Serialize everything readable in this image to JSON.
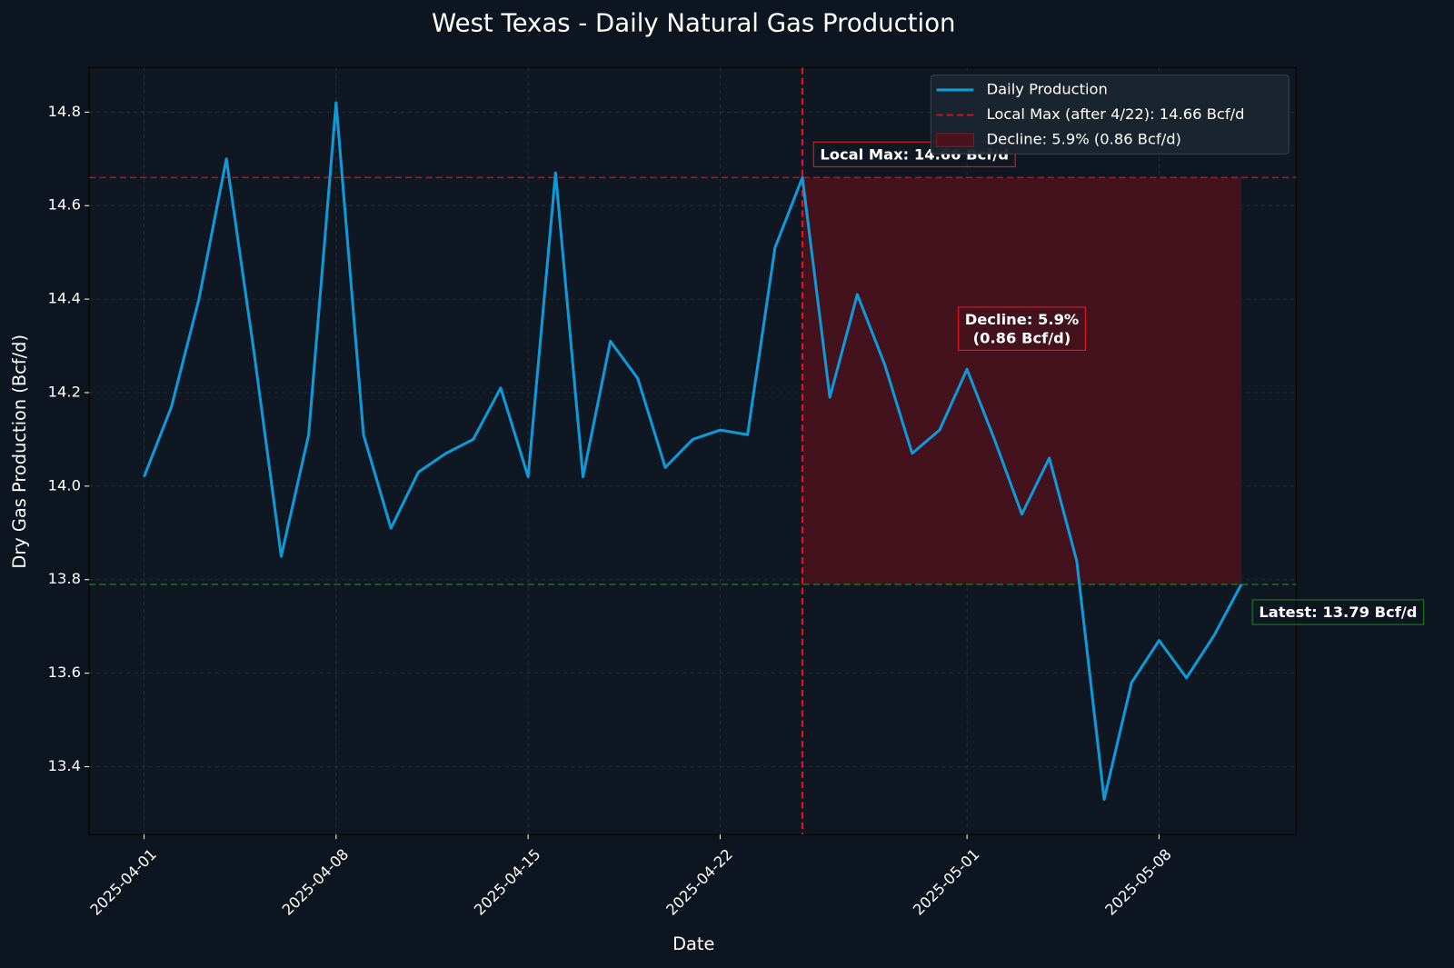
{
  "chart_data": {
    "type": "line",
    "title": "West Texas - Daily Natural Gas Production",
    "xlabel": "Date",
    "ylabel": "Dry Gas Production (Bcf/d)",
    "x": [
      "2025-04-01",
      "2025-04-02",
      "2025-04-03",
      "2025-04-04",
      "2025-04-05",
      "2025-04-06",
      "2025-04-07",
      "2025-04-08",
      "2025-04-09",
      "2025-04-10",
      "2025-04-11",
      "2025-04-12",
      "2025-04-13",
      "2025-04-14",
      "2025-04-15",
      "2025-04-16",
      "2025-04-17",
      "2025-04-18",
      "2025-04-19",
      "2025-04-20",
      "2025-04-21",
      "2025-04-22",
      "2025-04-23",
      "2025-04-24",
      "2025-04-25",
      "2025-04-26",
      "2025-04-27",
      "2025-04-28",
      "2025-04-29",
      "2025-04-30",
      "2025-05-01",
      "2025-05-02",
      "2025-05-03",
      "2025-05-04",
      "2025-05-05",
      "2025-05-06",
      "2025-05-07",
      "2025-05-08",
      "2025-05-09",
      "2025-05-10",
      "2025-05-11"
    ],
    "series": [
      {
        "name": "Daily Production",
        "color": "#0e9ad8",
        "values": [
          14.02,
          14.17,
          14.4,
          14.7,
          14.29,
          13.85,
          14.11,
          14.82,
          14.11,
          13.91,
          14.03,
          14.07,
          14.1,
          14.21,
          14.02,
          14.67,
          14.02,
          14.31,
          14.23,
          14.04,
          14.1,
          14.12,
          14.11,
          14.51,
          14.66,
          14.19,
          14.41,
          14.26,
          14.07,
          14.12,
          14.25,
          14.1,
          13.94,
          14.06,
          13.84,
          13.33,
          13.58,
          13.67,
          13.59,
          13.68,
          13.79
        ]
      }
    ],
    "xlim": [
      "2025-03-30",
      "2025-05-13"
    ],
    "ylim": [
      13.255,
      14.895
    ],
    "xticks": [
      "2025-04-01",
      "2025-04-08",
      "2025-04-15",
      "2025-04-22",
      "2025-05-01",
      "2025-05-08"
    ],
    "yticks": [
      13.4,
      13.6,
      13.8,
      {
        "value": 14.0,
        "label": "14.0"
      },
      14.2,
      14.4,
      14.6,
      14.8
    ],
    "grid": true,
    "legend": "upper right",
    "vlines": [
      {
        "x": "2025-04-25",
        "color": "#e0141e"
      }
    ],
    "hlines": [
      {
        "value": 14.66,
        "color": "#c8151d",
        "name": "Local Max (after 4/22): 14.66 Bcf/d"
      },
      {
        "value": 13.79,
        "color": "#1f7a1f"
      }
    ],
    "span": {
      "x": [
        "2025-04-25",
        "2025-05-11"
      ],
      "y": [
        13.79,
        14.66
      ],
      "color": "#4a121c",
      "name": "Decline: 5.9% (0.86 Bcf/d)"
    },
    "annotations": [
      {
        "lines": [
          "Local Max: 14.66 Bcf/d"
        ],
        "color": "#ff1a1a"
      },
      {
        "lines": [
          "Decline: 5.9%",
          "(0.86 Bcf/d)"
        ],
        "color": "#ff1a1a"
      },
      {
        "lines": [
          "Latest: 13.79 Bcf/d"
        ],
        "color": "#1a8c1a"
      }
    ]
  }
}
